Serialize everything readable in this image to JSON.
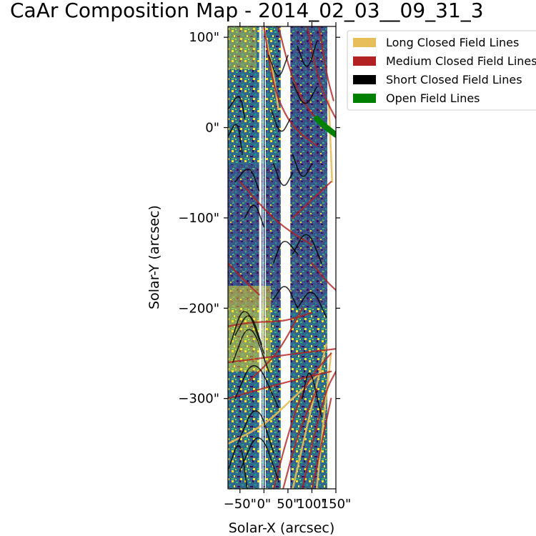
{
  "chart_data": {
    "type": "heatmap",
    "title": "CaAr Composition Map - 2014_02_03__09_31_3",
    "xlabel": "Solar-X (arcsec)",
    "ylabel": "Solar-Y (arcsec)",
    "xlim": [
      -75,
      150
    ],
    "ylim": [
      -400,
      112
    ],
    "xticks": [
      "−50\"",
      "0\"",
      "50\"",
      "100\"",
      "150\""
    ],
    "xtick_values": [
      -50,
      0,
      50,
      100,
      150
    ],
    "yticks": [
      "100\"",
      "0\"",
      "−100\"",
      "−200\"",
      "−300\""
    ],
    "ytick_values": [
      100,
      0,
      -100,
      -200,
      -300
    ],
    "data_gaps_x": [
      [
        -10,
        -5
      ],
      [
        -3,
        -1
      ],
      [
        2,
        4
      ],
      [
        35,
        55
      ],
      [
        132,
        150
      ]
    ],
    "legend": {
      "placement": "upper right outside",
      "entries": [
        {
          "label": "Long Closed Field Lines",
          "color": "#e8be5a"
        },
        {
          "label": "Medium Closed Field Lines",
          "color": "#b22222"
        },
        {
          "label": "Short Closed Field Lines",
          "color": "#000000"
        },
        {
          "label": "Open Field Lines",
          "color": "#008000"
        }
      ]
    },
    "field_lines": {
      "long": [
        {
          "points": [
            [
              -75,
              -350
            ],
            [
              0,
              -330
            ],
            [
              60,
              -300
            ],
            [
              120,
              -270
            ]
          ]
        },
        {
          "points": [
            [
              60,
              -400
            ],
            [
              90,
              -330
            ],
            [
              130,
              -240
            ]
          ]
        },
        {
          "points": [
            [
              110,
              -400
            ],
            [
              125,
              -320
            ],
            [
              140,
              -250
            ]
          ]
        },
        {
          "points": [
            [
              0,
              110
            ],
            [
              20,
              60
            ],
            [
              30,
              20
            ]
          ]
        },
        {
          "points": [
            [
              135,
              30
            ],
            [
              140,
              -30
            ],
            [
              142,
              -60
            ]
          ]
        }
      ],
      "medium": [
        {
          "points": [
            [
              -75,
              -220
            ],
            [
              -20,
              -215
            ],
            [
              40,
              -215
            ],
            [
              100,
              -205
            ]
          ]
        },
        {
          "points": [
            [
              -75,
              -260
            ],
            [
              0,
              -255
            ],
            [
              70,
              -250
            ],
            [
              150,
              -245
            ]
          ]
        },
        {
          "points": [
            [
              -75,
              -300
            ],
            [
              -10,
              -290
            ],
            [
              60,
              -280
            ],
            [
              140,
              -270
            ]
          ]
        },
        {
          "points": [
            [
              -30,
              -280
            ],
            [
              10,
              -260
            ],
            [
              40,
              -240
            ],
            [
              80,
              -200
            ]
          ]
        },
        {
          "points": [
            [
              20,
              -400
            ],
            [
              55,
              -330
            ],
            [
              90,
              -280
            ],
            [
              140,
              -250
            ]
          ]
        },
        {
          "points": [
            [
              40,
              -400
            ],
            [
              70,
              -340
            ],
            [
              110,
              -290
            ]
          ]
        },
        {
          "points": [
            [
              80,
              -400
            ],
            [
              105,
              -340
            ],
            [
              130,
              -290
            ],
            [
              150,
              -270
            ]
          ]
        },
        {
          "points": [
            [
              100,
              -400
            ],
            [
              120,
              -350
            ],
            [
              140,
              -300
            ]
          ]
        },
        {
          "points": [
            [
              0,
              112
            ],
            [
              15,
              60
            ],
            [
              30,
              30
            ],
            [
              60,
              0
            ],
            [
              110,
              -20
            ]
          ]
        },
        {
          "points": [
            [
              30,
              112
            ],
            [
              55,
              60
            ],
            [
              90,
              20
            ],
            [
              130,
              0
            ]
          ]
        },
        {
          "points": [
            [
              90,
              112
            ],
            [
              110,
              60
            ],
            [
              130,
              30
            ],
            [
              150,
              10
            ]
          ]
        },
        {
          "points": [
            [
              115,
              112
            ],
            [
              130,
              60
            ],
            [
              145,
              30
            ]
          ]
        },
        {
          "points": [
            [
              -50,
              -60
            ],
            [
              0,
              -90
            ],
            [
              40,
              -110
            ],
            [
              100,
              -130
            ]
          ]
        },
        {
          "points": [
            [
              60,
              -100
            ],
            [
              100,
              -80
            ],
            [
              140,
              -60
            ]
          ]
        },
        {
          "points": [
            [
              -75,
              -150
            ],
            [
              -40,
              -170
            ],
            [
              -10,
              -185
            ]
          ]
        },
        {
          "points": [
            [
              100,
              -150
            ],
            [
              130,
              -170
            ],
            [
              150,
              -180
            ]
          ]
        }
      ],
      "short": [
        {
          "points": [
            [
              -60,
              -230
            ],
            [
              -30,
              -200
            ],
            [
              -5,
              -240
            ]
          ]
        },
        {
          "points": [
            [
              -70,
              -240
            ],
            [
              -40,
              -190
            ],
            [
              0,
              -250
            ]
          ]
        },
        {
          "points": [
            [
              -65,
              -260
            ],
            [
              -30,
              -210
            ],
            [
              10,
              -270
            ]
          ]
        },
        {
          "points": [
            [
              -60,
              -300
            ],
            [
              -20,
              -250
            ],
            [
              30,
              -310
            ]
          ]
        },
        {
          "points": [
            [
              -55,
              -350
            ],
            [
              -15,
              -300
            ],
            [
              20,
              -360
            ]
          ]
        },
        {
          "points": [
            [
              -50,
              -380
            ],
            [
              -10,
              -330
            ],
            [
              30,
              -390
            ]
          ]
        },
        {
          "points": [
            [
              -40,
              -100
            ],
            [
              -20,
              -80
            ],
            [
              0,
              -110
            ]
          ]
        },
        {
          "points": [
            [
              -60,
              -60
            ],
            [
              -30,
              -40
            ],
            [
              -10,
              -70
            ]
          ]
        },
        {
          "points": [
            [
              10,
              80
            ],
            [
              30,
              50
            ],
            [
              50,
              80
            ]
          ]
        },
        {
          "points": [
            [
              15,
              20
            ],
            [
              35,
              -10
            ],
            [
              55,
              10
            ]
          ]
        },
        {
          "points": [
            [
              20,
              -40
            ],
            [
              40,
              -70
            ],
            [
              60,
              -50
            ]
          ]
        },
        {
          "points": [
            [
              60,
              -30
            ],
            [
              80,
              -60
            ],
            [
              100,
              -40
            ]
          ]
        },
        {
          "points": [
            [
              70,
              90
            ],
            [
              90,
              60
            ],
            [
              110,
              95
            ]
          ]
        },
        {
          "points": [
            [
              60,
              50
            ],
            [
              85,
              20
            ],
            [
              110,
              45
            ]
          ]
        },
        {
          "points": [
            [
              20,
              -150
            ],
            [
              40,
              -120
            ],
            [
              70,
              -140
            ]
          ]
        },
        {
          "points": [
            [
              60,
              -140
            ],
            [
              90,
              -110
            ],
            [
              120,
              -150
            ]
          ]
        },
        {
          "points": [
            [
              20,
              -190
            ],
            [
              45,
              -170
            ],
            [
              70,
              -200
            ]
          ]
        },
        {
          "points": [
            [
              70,
              -200
            ],
            [
              100,
              -175
            ],
            [
              130,
              -210
            ]
          ]
        },
        {
          "points": [
            [
              -75,
              20
            ],
            [
              -50,
              40
            ],
            [
              -40,
              10
            ]
          ]
        },
        {
          "points": [
            [
              -75,
              -10
            ],
            [
              -55,
              10
            ],
            [
              -45,
              -30
            ]
          ]
        },
        {
          "points": [
            [
              80,
              -300
            ],
            [
              95,
              -260
            ],
            [
              120,
              -320
            ]
          ]
        },
        {
          "points": [
            [
              -75,
              -380
            ],
            [
              -50,
              -340
            ],
            [
              -35,
              -400
            ]
          ]
        }
      ],
      "open": [
        {
          "points": [
            [
              110,
              10
            ],
            [
              130,
              0
            ],
            [
              150,
              -8
            ]
          ]
        }
      ]
    }
  }
}
